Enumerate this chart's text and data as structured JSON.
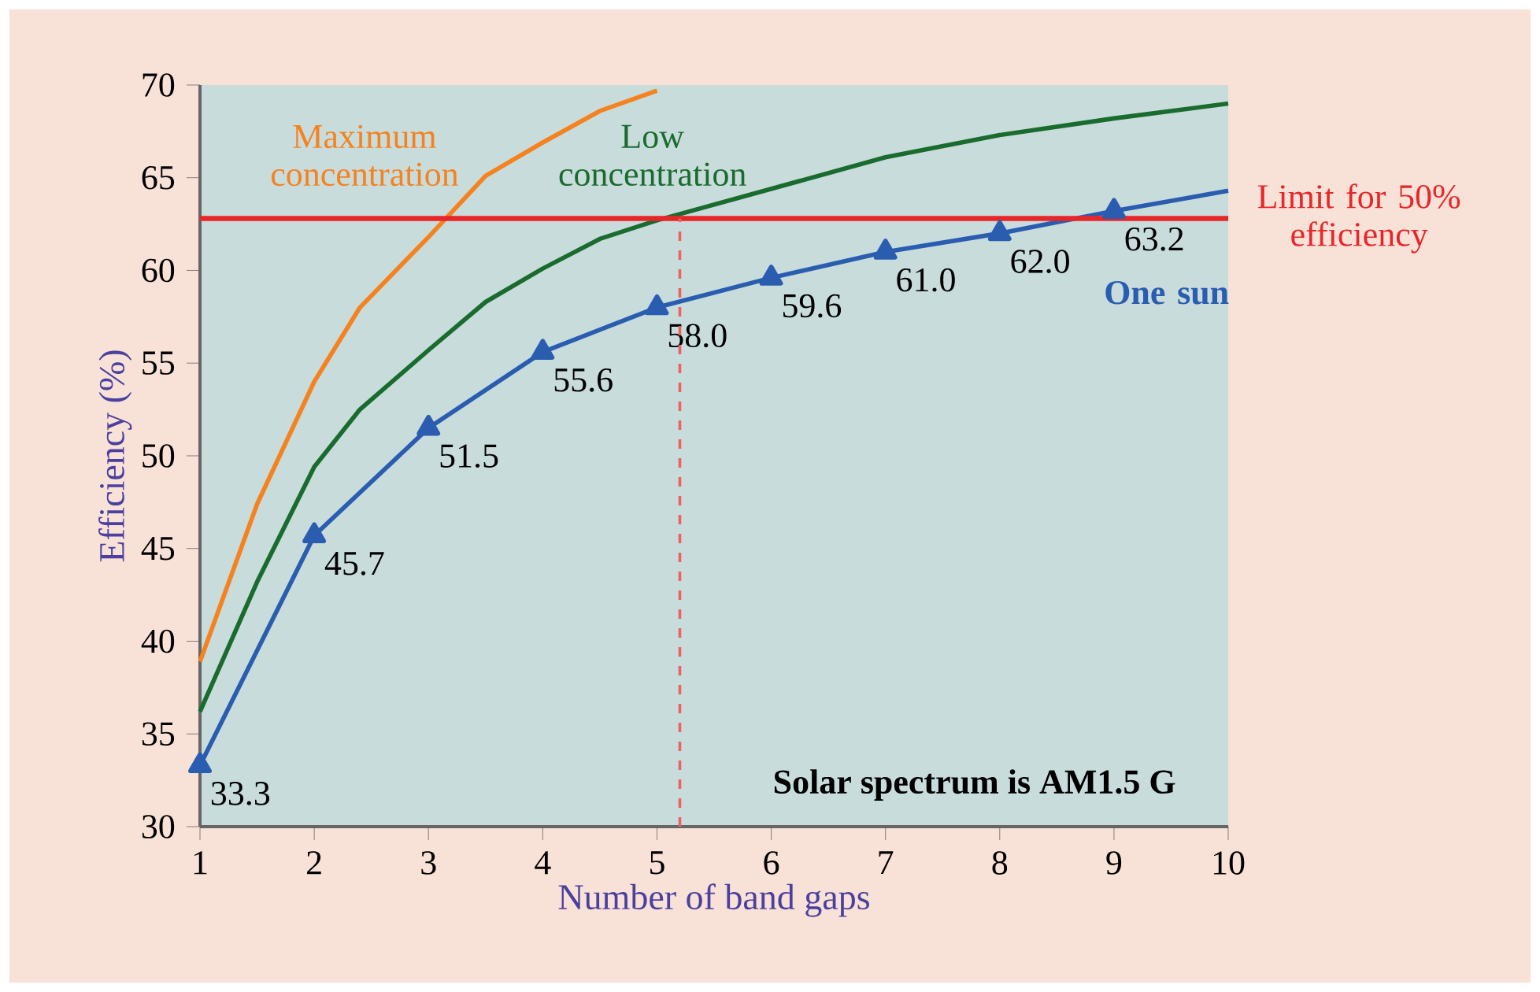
{
  "chart_data": {
    "type": "line",
    "xlabel": "Number of band gaps",
    "ylabel": "Efficiency (%)",
    "xlim": [
      1,
      10
    ],
    "ylim": [
      30,
      70
    ],
    "xticks": [
      1,
      2,
      3,
      4,
      5,
      6,
      7,
      8,
      9,
      10
    ],
    "yticks": [
      30,
      35,
      40,
      45,
      50,
      55,
      60,
      65,
      70
    ],
    "series": [
      {
        "name": "Maximum concentration",
        "color": "#f5821f",
        "x": [
          1,
          1.5,
          2,
          2.4,
          3,
          3.5,
          4,
          4.5,
          5
        ],
        "values": [
          38.9,
          47.4,
          54.0,
          58.0,
          61.8,
          65.1,
          66.9,
          68.6,
          69.7
        ]
      },
      {
        "name": "Low concentration",
        "color": "#1a6b2e",
        "x": [
          1,
          1.5,
          2,
          2.4,
          3,
          3.5,
          4,
          4.5,
          5,
          6,
          7,
          8,
          9,
          10
        ],
        "values": [
          36.2,
          43.2,
          49.4,
          52.5,
          55.7,
          58.3,
          60.1,
          61.7,
          62.7,
          64.4,
          66.1,
          67.3,
          68.2,
          69.0
        ]
      },
      {
        "name": "One sun",
        "color": "#2a5db0",
        "marker": "triangle",
        "x": [
          1,
          2,
          3,
          4,
          5,
          6,
          7,
          8,
          9,
          10
        ],
        "values": [
          33.3,
          45.7,
          51.5,
          55.6,
          58.0,
          59.6,
          61.0,
          62.0,
          63.2,
          64.3
        ],
        "value_labels": [
          "33.3",
          "45.7",
          "51.5",
          "55.6",
          "58.0",
          "59.6",
          "61.0",
          "62.0",
          "63.2",
          null
        ]
      }
    ],
    "ref_lines": [
      {
        "axis": "y",
        "value": 62.8,
        "label": "Limit for 50% efficiency",
        "color": "#e8262a"
      },
      {
        "axis": "x",
        "value": 5.2,
        "color": "#f06060",
        "line_style": "dashed"
      }
    ],
    "annotations": [
      "Solar spectrum is AM1.5 G"
    ]
  }
}
